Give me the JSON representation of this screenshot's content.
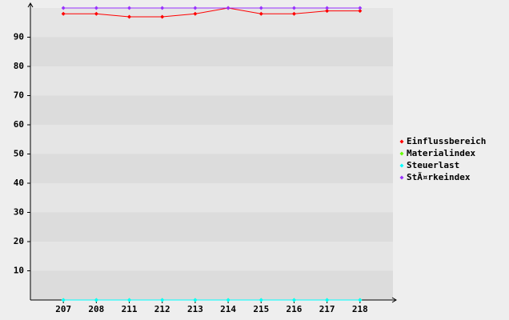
{
  "chart_data": {
    "type": "line",
    "categories": [
      "207",
      "208",
      "211",
      "212",
      "213",
      "214",
      "215",
      "216",
      "217",
      "218"
    ],
    "series": [
      {
        "name": "Einflussbereich",
        "color": "#ff0000",
        "values": [
          98,
          98,
          97,
          97,
          98,
          100,
          98,
          98,
          99,
          99
        ]
      },
      {
        "name": "Materialindex",
        "color": "#66ff00",
        "values": [
          0,
          0,
          0,
          0,
          0,
          0,
          0,
          0,
          0,
          0
        ]
      },
      {
        "name": "Steuerlast",
        "color": "#00ffff",
        "values": [
          0,
          0,
          0,
          0,
          0,
          0,
          0,
          0,
          0,
          0
        ]
      },
      {
        "name": "StÃ¤rkeindex",
        "color": "#9933ff",
        "values": [
          100,
          100,
          100,
          100,
          100,
          100,
          100,
          100,
          100,
          100
        ]
      }
    ],
    "ylim": [
      0,
      100
    ],
    "yticks": [
      10,
      20,
      30,
      40,
      50,
      60,
      70,
      80,
      90
    ],
    "grid": true
  }
}
